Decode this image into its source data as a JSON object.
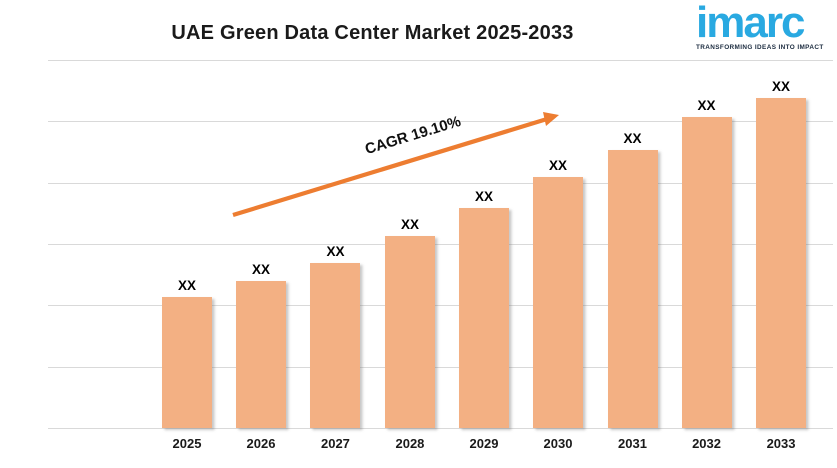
{
  "title": "UAE Green Data Center Market 2025-2033",
  "logo": {
    "wordmark": "imarc",
    "tagline": "TRANSFORMING IDEAS INTO IMPACT"
  },
  "annotation": {
    "text": "CAGR 19.10%"
  },
  "colors": {
    "background": "#FFFFFF",
    "bar": "#F3B083",
    "arrow": "#ED7D31",
    "gridline": "#D9D9D9",
    "ink": "#1A1A1A",
    "logo_blue": "#29A9E1",
    "logo_tagline": "#1B2B3F"
  },
  "chart_data": {
    "type": "bar",
    "title": "UAE Green Data Center Market 2025-2033",
    "xlabel": "",
    "ylabel": "",
    "legend": "none",
    "grid": "horizontal",
    "gridline_count": 7,
    "annotation": "CAGR 19.10%",
    "categories": [
      "2025",
      "2026",
      "2027",
      "2028",
      "2029",
      "2030",
      "2031",
      "2032",
      "2033"
    ],
    "value_labels": [
      "XX",
      "XX",
      "XX",
      "XX",
      "XX",
      "XX",
      "XX",
      "XX",
      "XX"
    ],
    "bars": [
      {
        "year": "2025",
        "value_label": "XX",
        "height_pct": 35.6,
        "center_pct": 17.71
      },
      {
        "year": "2026",
        "value_label": "XX",
        "height_pct": 39.9,
        "center_pct": 27.13
      },
      {
        "year": "2027",
        "value_label": "XX",
        "height_pct": 44.8,
        "center_pct": 36.62
      },
      {
        "year": "2028",
        "value_label": "XX",
        "height_pct": 52.2,
        "center_pct": 46.11
      },
      {
        "year": "2029",
        "value_label": "XX",
        "height_pct": 59.8,
        "center_pct": 55.54
      },
      {
        "year": "2030",
        "value_label": "XX",
        "height_pct": 68.2,
        "center_pct": 64.97
      },
      {
        "year": "2031",
        "value_label": "XX",
        "height_pct": 75.5,
        "center_pct": 74.46
      },
      {
        "year": "2032",
        "value_label": "XX",
        "height_pct": 84.5,
        "center_pct": 83.89
      },
      {
        "year": "2033",
        "value_label": "XX",
        "height_pct": 89.7,
        "center_pct": 93.38
      }
    ]
  }
}
